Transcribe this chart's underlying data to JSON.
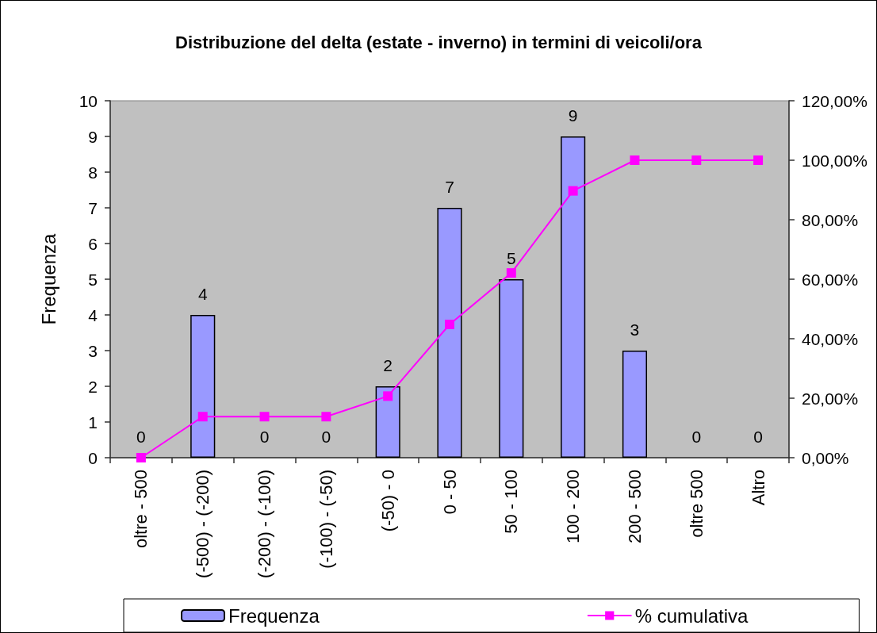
{
  "chart_data": {
    "type": "bar",
    "title": "Distribuzione del delta (estate - inverno) in termini di veicoli/ora",
    "ylabel": "Frequenza",
    "categories": [
      "oltre - 500",
      "(-500) - (-200)",
      "(-200) - (-100)",
      "(-100) - (-50)",
      "(-50) - 0",
      "0 - 50",
      "50 - 100",
      "100 - 200",
      "200 - 500",
      "oltre 500",
      "Altro"
    ],
    "series": [
      {
        "name": "Frequenza",
        "color": "#9999ff",
        "values": [
          0,
          4,
          0,
          0,
          2,
          7,
          5,
          9,
          3,
          0,
          0
        ],
        "value_labels": [
          "0",
          "4",
          "0",
          "0",
          "2",
          "7",
          "5",
          "9",
          "3",
          "0",
          "0"
        ]
      },
      {
        "name": "% cumulativa",
        "type": "line",
        "axis": "y2",
        "color": "#ff00ff",
        "values": [
          0,
          13.8,
          13.8,
          13.8,
          20.7,
          44.8,
          62.1,
          89.7,
          100,
          100,
          100
        ]
      }
    ],
    "ylim": [
      0,
      10
    ],
    "yticks": [
      0,
      1,
      2,
      3,
      4,
      5,
      6,
      7,
      8,
      9,
      10
    ],
    "y2lim": [
      0,
      120
    ],
    "y2ticks": [
      {
        "value": 0,
        "label": "0,00%"
      },
      {
        "value": 20,
        "label": "20,00%"
      },
      {
        "value": 40,
        "label": "40,00%"
      },
      {
        "value": 60,
        "label": "60,00%"
      },
      {
        "value": 80,
        "label": "80,00%"
      },
      {
        "value": 100,
        "label": "100,00%"
      },
      {
        "value": 120,
        "label": "120,00%"
      }
    ],
    "legend": "bottom",
    "marker": "square",
    "line_style": "solid"
  }
}
